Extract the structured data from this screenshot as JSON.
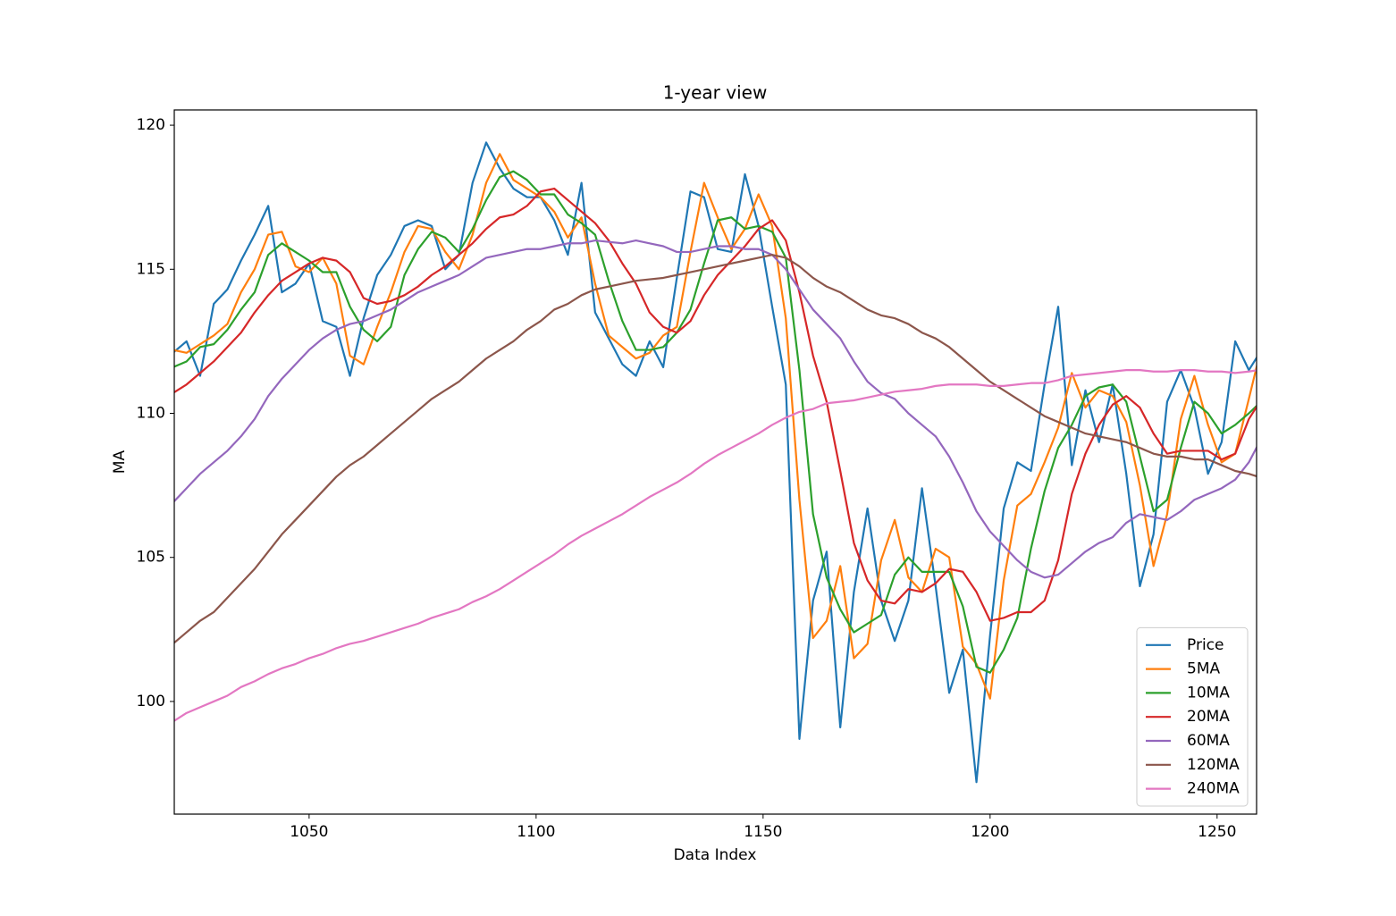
{
  "chart_data": {
    "type": "line",
    "title": "1-year view",
    "x_label": "Data Index",
    "y_label": "MA",
    "xlim": [
      1020.3,
      1258.7
    ],
    "ylim": [
      96.09,
      120.53
    ],
    "xticks": [
      1050,
      1100,
      1150,
      1200,
      1250
    ],
    "yticks": [
      100,
      105,
      110,
      115,
      120
    ],
    "grid": false,
    "legend": "lower right",
    "x": [
      1020,
      1023,
      1026,
      1029,
      1032,
      1035,
      1038,
      1041,
      1044,
      1047,
      1050,
      1053,
      1056,
      1059,
      1062,
      1065,
      1068,
      1071,
      1074,
      1077,
      1080,
      1083,
      1086,
      1089,
      1092,
      1095,
      1098,
      1101,
      1104,
      1107,
      1110,
      1113,
      1116,
      1119,
      1122,
      1125,
      1128,
      1131,
      1134,
      1137,
      1140,
      1143,
      1146,
      1149,
      1152,
      1155,
      1158,
      1161,
      1164,
      1167,
      1170,
      1173,
      1176,
      1179,
      1182,
      1185,
      1188,
      1191,
      1194,
      1197,
      1200,
      1203,
      1206,
      1209,
      1212,
      1215,
      1218,
      1221,
      1224,
      1227,
      1230,
      1233,
      1236,
      1239,
      1242,
      1245,
      1248,
      1251,
      1254,
      1257,
      1259
    ],
    "series": [
      {
        "name": "Price",
        "color": "#1f77b4",
        "values": [
          112.1,
          112.5,
          111.3,
          113.8,
          114.3,
          115.3,
          116.2,
          117.2,
          114.2,
          114.5,
          115.2,
          113.2,
          113.0,
          111.3,
          113.3,
          114.8,
          115.5,
          116.5,
          116.7,
          116.5,
          115.0,
          115.5,
          118.0,
          119.4,
          118.5,
          117.8,
          117.5,
          117.5,
          116.7,
          115.5,
          118.0,
          113.5,
          112.6,
          111.7,
          111.3,
          112.5,
          111.6,
          114.7,
          117.7,
          117.5,
          115.7,
          115.6,
          118.3,
          116.5,
          113.7,
          111.0,
          98.7,
          103.5,
          105.2,
          99.1,
          103.8,
          106.7,
          103.5,
          102.1,
          103.5,
          107.4,
          104.0,
          100.3,
          101.8,
          97.2,
          102.3,
          106.7,
          108.3,
          108.0,
          111.0,
          113.7,
          108.2,
          110.8,
          109.0,
          111.0,
          107.9,
          104.0,
          105.8,
          110.4,
          111.5,
          110.2,
          107.9,
          109.0,
          112.5,
          111.5,
          112.0
        ]
      },
      {
        "name": "5MA",
        "color": "#ff7f0e",
        "values": [
          112.2,
          112.1,
          112.4,
          112.7,
          113.1,
          114.2,
          115.0,
          116.2,
          116.3,
          115.1,
          114.9,
          115.4,
          114.5,
          112.0,
          111.7,
          113.0,
          114.2,
          115.6,
          116.5,
          116.4,
          115.6,
          115.0,
          116.2,
          118.0,
          119.0,
          118.1,
          117.8,
          117.5,
          117.0,
          116.1,
          116.8,
          114.5,
          112.7,
          112.3,
          111.9,
          112.1,
          112.7,
          113.0,
          115.6,
          118.0,
          116.8,
          115.7,
          116.4,
          117.6,
          116.5,
          113.3,
          107.0,
          102.2,
          102.8,
          104.7,
          101.5,
          102.0,
          104.9,
          106.3,
          104.3,
          103.8,
          105.3,
          105.0,
          101.9,
          101.3,
          100.1,
          104.2,
          106.8,
          107.2,
          108.3,
          109.5,
          111.4,
          110.2,
          110.8,
          110.6,
          109.7,
          107.5,
          104.7,
          106.5,
          109.8,
          111.3,
          109.6,
          108.3,
          108.6,
          110.5,
          111.8
        ]
      },
      {
        "name": "10MA",
        "color": "#2ca02c",
        "values": [
          111.6,
          111.8,
          112.3,
          112.4,
          112.9,
          113.6,
          114.2,
          115.5,
          115.9,
          115.6,
          115.3,
          114.9,
          114.9,
          113.7,
          112.9,
          112.5,
          113.0,
          114.8,
          115.7,
          116.3,
          116.1,
          115.6,
          116.4,
          117.4,
          118.2,
          118.4,
          118.1,
          117.6,
          117.6,
          116.9,
          116.6,
          116.2,
          114.6,
          113.2,
          112.2,
          112.2,
          112.3,
          112.8,
          113.6,
          115.2,
          116.7,
          116.8,
          116.4,
          116.5,
          116.3,
          115.4,
          111.5,
          106.5,
          104.3,
          103.2,
          102.4,
          102.7,
          103.0,
          104.4,
          105.0,
          104.5,
          104.5,
          104.5,
          103.3,
          101.2,
          101.0,
          101.8,
          102.9,
          105.3,
          107.3,
          108.8,
          109.6,
          110.6,
          110.9,
          111.0,
          110.4,
          108.5,
          106.6,
          107.0,
          108.8,
          110.4,
          110.0,
          109.3,
          109.6,
          110.0,
          110.3
        ]
      },
      {
        "name": "20MA",
        "color": "#d62728",
        "values": [
          110.7,
          111.0,
          111.4,
          111.8,
          112.3,
          112.8,
          113.5,
          114.1,
          114.6,
          114.9,
          115.2,
          115.4,
          115.3,
          114.9,
          114.0,
          113.8,
          113.9,
          114.1,
          114.4,
          114.8,
          115.1,
          115.5,
          115.9,
          116.4,
          116.8,
          116.9,
          117.2,
          117.7,
          117.8,
          117.4,
          117.0,
          116.6,
          116.0,
          115.2,
          114.5,
          113.5,
          113.0,
          112.8,
          113.2,
          114.1,
          114.8,
          115.3,
          115.8,
          116.4,
          116.7,
          116.0,
          114.2,
          112.0,
          110.4,
          108.0,
          105.5,
          104.2,
          103.5,
          103.4,
          103.9,
          103.8,
          104.1,
          104.6,
          104.5,
          103.8,
          102.8,
          102.9,
          103.1,
          103.1,
          103.5,
          104.9,
          107.2,
          108.6,
          109.6,
          110.3,
          110.6,
          110.2,
          109.3,
          108.6,
          108.7,
          108.7,
          108.7,
          108.4,
          108.6,
          109.8,
          110.3
        ]
      },
      {
        "name": "60MA",
        "color": "#9467bd",
        "values": [
          106.9,
          107.4,
          107.9,
          108.3,
          108.7,
          109.2,
          109.8,
          110.6,
          111.2,
          111.7,
          112.2,
          112.6,
          112.9,
          113.1,
          113.2,
          113.4,
          113.6,
          113.9,
          114.2,
          114.4,
          114.6,
          114.8,
          115.1,
          115.4,
          115.5,
          115.6,
          115.7,
          115.7,
          115.8,
          115.9,
          115.9,
          116.0,
          115.95,
          115.9,
          116.0,
          115.9,
          115.8,
          115.6,
          115.6,
          115.7,
          115.8,
          115.8,
          115.7,
          115.7,
          115.5,
          115.0,
          114.3,
          113.6,
          113.1,
          112.6,
          111.8,
          111.1,
          110.7,
          110.5,
          110.0,
          109.6,
          109.2,
          108.5,
          107.6,
          106.6,
          105.9,
          105.4,
          104.9,
          104.5,
          104.3,
          104.4,
          104.8,
          105.2,
          105.5,
          105.7,
          106.2,
          106.5,
          106.4,
          106.3,
          106.6,
          107.0,
          107.2,
          107.4,
          107.7,
          108.3,
          108.9
        ]
      },
      {
        "name": "120MA",
        "color": "#8c564b",
        "values": [
          102.0,
          102.4,
          102.8,
          103.1,
          103.6,
          104.1,
          104.6,
          105.2,
          105.8,
          106.3,
          106.8,
          107.3,
          107.8,
          108.2,
          108.5,
          108.9,
          109.3,
          109.7,
          110.1,
          110.5,
          110.8,
          111.1,
          111.5,
          111.9,
          112.2,
          112.5,
          112.9,
          113.2,
          113.6,
          113.8,
          114.1,
          114.3,
          114.4,
          114.5,
          114.6,
          114.65,
          114.7,
          114.8,
          114.9,
          115.0,
          115.1,
          115.2,
          115.3,
          115.4,
          115.5,
          115.4,
          115.1,
          114.7,
          114.4,
          114.2,
          113.9,
          113.6,
          113.4,
          113.3,
          113.1,
          112.8,
          112.6,
          112.3,
          111.9,
          111.5,
          111.1,
          110.8,
          110.5,
          110.2,
          109.9,
          109.7,
          109.5,
          109.3,
          109.2,
          109.1,
          109.0,
          108.8,
          108.6,
          108.5,
          108.5,
          108.4,
          108.4,
          108.2,
          108.0,
          107.9,
          107.8
        ]
      },
      {
        "name": "240MA",
        "color": "#e377c2",
        "values": [
          99.3,
          99.6,
          99.8,
          100.0,
          100.2,
          100.5,
          100.7,
          100.95,
          101.15,
          101.3,
          101.5,
          101.65,
          101.85,
          102.0,
          102.1,
          102.25,
          102.4,
          102.55,
          102.7,
          102.9,
          103.05,
          103.2,
          103.45,
          103.65,
          103.9,
          104.2,
          104.5,
          104.8,
          105.1,
          105.45,
          105.75,
          106.0,
          106.25,
          106.5,
          106.8,
          107.1,
          107.35,
          107.6,
          107.9,
          108.25,
          108.55,
          108.8,
          109.05,
          109.3,
          109.6,
          109.85,
          110.05,
          110.15,
          110.35,
          110.4,
          110.45,
          110.55,
          110.65,
          110.75,
          110.8,
          110.85,
          110.95,
          111.0,
          111.0,
          111.0,
          110.95,
          110.95,
          111.0,
          111.05,
          111.05,
          111.15,
          111.3,
          111.35,
          111.4,
          111.45,
          111.5,
          111.5,
          111.45,
          111.45,
          111.5,
          111.5,
          111.45,
          111.45,
          111.4,
          111.45,
          111.5
        ]
      }
    ]
  }
}
